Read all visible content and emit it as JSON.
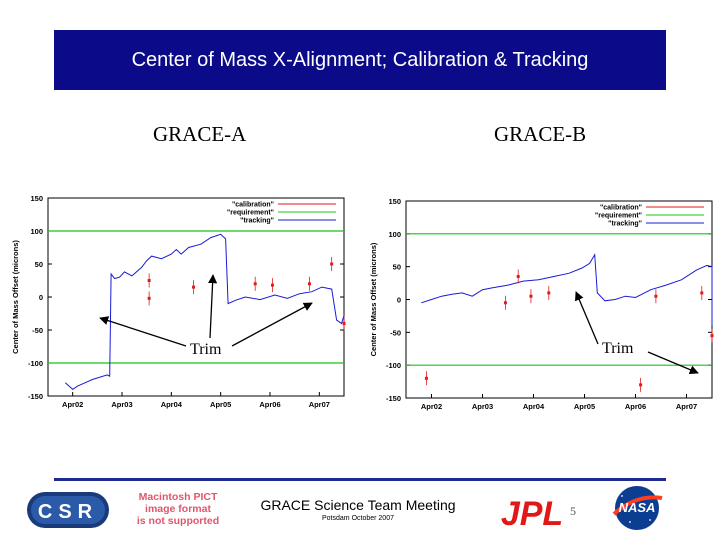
{
  "title": "Center of Mass X-Alignment; Calibration & Tracking",
  "labels": {
    "grace_a": "GRACE-A",
    "grace_b": "GRACE-B",
    "trim_left": "Trim",
    "trim_right": "Trim"
  },
  "footer": {
    "csr_logo_text": "CSR",
    "pict_lines": [
      "Macintosh PICT",
      "image format",
      "is not supported"
    ],
    "meeting": "GRACE Science Team Meeting",
    "venue": "Potsdam October 2007",
    "jpl_logo_text": "JPL",
    "page_number": "5",
    "nasa_logo_text": "NASA"
  },
  "colors": {
    "title_bg": "#0b0b8a",
    "calibration": "#e21a1a",
    "requirement": "#18c418",
    "tracking": "#1a1ad8",
    "footer_line": "#1f2b8c"
  },
  "chart_data": [
    {
      "type": "line",
      "title": "",
      "ylabel": "Center of Mass Offset (microns)",
      "xlabel": "",
      "categories": [
        "Apr02",
        "Apr03",
        "Apr04",
        "Apr05",
        "Apr06",
        "Apr07"
      ],
      "ylim": [
        -150,
        150
      ],
      "yticks": [
        -150,
        -100,
        -50,
        0,
        50,
        100,
        150
      ],
      "legend_position": "top-right",
      "legend": [
        "\"calibration\"",
        "\"requirement\"",
        "\"tracking\""
      ],
      "requirement_levels": [
        100,
        -100
      ],
      "series": [
        {
          "name": "\"tracking\"",
          "points": [
            [
              -0.15,
              -130
            ],
            [
              0,
              -140
            ],
            [
              0.1,
              -135
            ],
            [
              0.4,
              -125
            ],
            [
              0.7,
              -118
            ],
            [
              0.75,
              -120
            ],
            [
              0.78,
              35
            ],
            [
              0.85,
              28
            ],
            [
              0.95,
              30
            ],
            [
              1.05,
              38
            ],
            [
              1.2,
              32
            ],
            [
              1.4,
              45
            ],
            [
              1.5,
              55
            ],
            [
              1.6,
              62
            ],
            [
              1.8,
              58
            ],
            [
              2,
              65
            ],
            [
              2.1,
              72
            ],
            [
              2.2,
              65
            ],
            [
              2.35,
              75
            ],
            [
              2.6,
              80
            ],
            [
              2.8,
              90
            ],
            [
              3,
              95
            ],
            [
              3.1,
              88
            ],
            [
              3.15,
              -10
            ],
            [
              3.3,
              -5
            ],
            [
              3.5,
              0
            ],
            [
              3.8,
              -4
            ],
            [
              4.1,
              3
            ],
            [
              4.35,
              -2
            ],
            [
              4.6,
              5
            ],
            [
              4.85,
              8
            ],
            [
              5.05,
              15
            ],
            [
              5.25,
              12
            ],
            [
              5.35,
              -35
            ],
            [
              5.45,
              -40
            ],
            [
              5.55,
              -28
            ],
            [
              5.7,
              -35
            ]
          ]
        },
        {
          "name": "\"calibration\"",
          "points": [
            [
              1.55,
              -2
            ],
            [
              1.55,
              25
            ],
            [
              2.45,
              15
            ],
            [
              3.7,
              20
            ],
            [
              4.05,
              18
            ],
            [
              4.8,
              20
            ],
            [
              5.25,
              50
            ],
            [
              5.5,
              -40
            ]
          ]
        }
      ]
    },
    {
      "type": "line",
      "title": "",
      "ylabel": "Center of Mass Offset (microns)",
      "xlabel": "",
      "categories": [
        "Apr02",
        "Apr03",
        "Apr04",
        "Apr05",
        "Apr06",
        "Apr07"
      ],
      "ylim": [
        -150,
        150
      ],
      "yticks": [
        -150,
        -100,
        -50,
        0,
        50,
        100,
        150
      ],
      "legend_position": "top-right",
      "legend": [
        "\"calibration\"",
        "\"requirement\"",
        "\"tracking\""
      ],
      "requirement_levels": [
        100,
        -100
      ],
      "series": [
        {
          "name": "\"tracking\"",
          "points": [
            [
              -0.2,
              -5
            ],
            [
              0,
              0
            ],
            [
              0.2,
              5
            ],
            [
              0.4,
              8
            ],
            [
              0.6,
              10
            ],
            [
              0.8,
              5
            ],
            [
              1,
              15
            ],
            [
              1.2,
              18
            ],
            [
              1.5,
              22
            ],
            [
              1.8,
              28
            ],
            [
              2.1,
              30
            ],
            [
              2.4,
              35
            ],
            [
              2.7,
              40
            ],
            [
              2.95,
              48
            ],
            [
              3.1,
              55
            ],
            [
              3.2,
              68
            ],
            [
              3.25,
              10
            ],
            [
              3.4,
              -2
            ],
            [
              3.6,
              0
            ],
            [
              3.8,
              5
            ],
            [
              4,
              3
            ],
            [
              4.3,
              15
            ],
            [
              4.6,
              22
            ],
            [
              4.9,
              30
            ],
            [
              5.2,
              45
            ],
            [
              5.4,
              52
            ],
            [
              5.55,
              50
            ],
            [
              5.65,
              42
            ],
            [
              5.7,
              -40
            ],
            [
              5.85,
              -35
            ],
            [
              6,
              -30
            ]
          ]
        },
        {
          "name": "\"calibration\"",
          "points": [
            [
              -0.1,
              -120
            ],
            [
              1.45,
              -5
            ],
            [
              1.7,
              35
            ],
            [
              1.95,
              5
            ],
            [
              2.3,
              10
            ],
            [
              4.1,
              -130
            ],
            [
              4.4,
              5
            ],
            [
              5.3,
              10
            ],
            [
              5.9,
              -55
            ]
          ]
        }
      ]
    }
  ]
}
